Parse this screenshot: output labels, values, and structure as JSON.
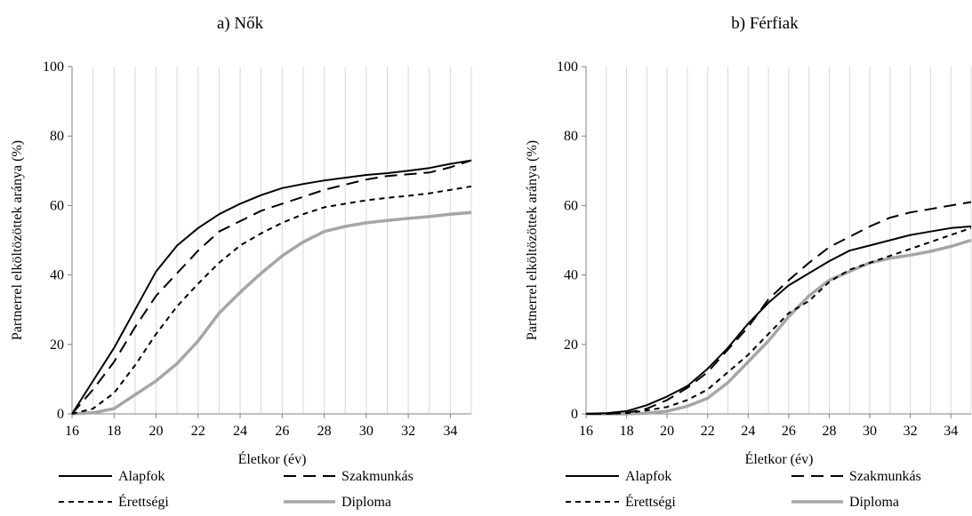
{
  "chart_data": [
    {
      "type": "line",
      "title": "a) Nők",
      "xlabel": "Életkor  (év)",
      "ylabel": "Partnerrel elköltözöttek aránya (%)",
      "xlim": [
        16,
        35
      ],
      "ylim": [
        0,
        100
      ],
      "xticks": [
        16,
        18,
        20,
        22,
        24,
        26,
        28,
        30,
        32,
        34
      ],
      "yticks": [
        0,
        20,
        40,
        60,
        80,
        100
      ],
      "grid": "vertical",
      "legend_position": "bottom",
      "x": [
        16,
        17,
        18,
        19,
        20,
        21,
        22,
        23,
        24,
        25,
        26,
        27,
        28,
        29,
        30,
        31,
        32,
        33,
        34,
        35
      ],
      "series": [
        {
          "name": "Alapfok",
          "style": "solid",
          "color": "#000000",
          "values": [
            0,
            9.5,
            19,
            30,
            41,
            48.5,
            53.5,
            57.5,
            60.5,
            63,
            65,
            66.2,
            67.2,
            68,
            68.8,
            69.3,
            70,
            70.8,
            72,
            73
          ]
        },
        {
          "name": "Szakmunkás",
          "style": "long-dash",
          "color": "#000000",
          "values": [
            0,
            7,
            15,
            25,
            34,
            40.5,
            47,
            52.5,
            55.5,
            58.5,
            60.5,
            62.5,
            64.5,
            66,
            67.5,
            68.5,
            69,
            69.5,
            71,
            73
          ]
        },
        {
          "name": "Érettségi",
          "style": "short-dash",
          "color": "#000000",
          "values": [
            0,
            1.5,
            6,
            14,
            23,
            31,
            37.5,
            43.5,
            48.5,
            52,
            55,
            57.5,
            59.5,
            60.5,
            61.5,
            62.2,
            62.8,
            63.5,
            64.5,
            65.5
          ]
        },
        {
          "name": "Diploma",
          "style": "solid-thick",
          "color": "#a6a6a6",
          "values": [
            0,
            0.3,
            1.5,
            5.5,
            9.5,
            14.5,
            21,
            29,
            35,
            40.5,
            45.5,
            49.5,
            52.5,
            54,
            55,
            55.7,
            56.3,
            56.8,
            57.5,
            58
          ]
        }
      ]
    },
    {
      "type": "line",
      "title": "b) Férfiak",
      "xlabel": "Életkor (év)",
      "ylabel": "Partnerrel elköltözöttek aránya (%)",
      "xlim": [
        16,
        35
      ],
      "ylim": [
        0,
        100
      ],
      "xticks": [
        16,
        18,
        20,
        22,
        24,
        26,
        28,
        30,
        32,
        34
      ],
      "yticks": [
        0,
        20,
        40,
        60,
        80,
        100
      ],
      "grid": "vertical",
      "legend_position": "bottom",
      "x": [
        16,
        17,
        18,
        19,
        20,
        21,
        22,
        23,
        24,
        25,
        26,
        27,
        28,
        29,
        30,
        31,
        32,
        33,
        34,
        35
      ],
      "series": [
        {
          "name": "Alapfok",
          "style": "solid",
          "color": "#000000",
          "values": [
            0,
            0.2,
            0.8,
            2.5,
            5,
            8,
            13,
            19,
            26,
            32,
            37,
            40.5,
            44,
            47,
            48.5,
            50,
            51.5,
            52.5,
            53.5,
            54
          ]
        },
        {
          "name": "Szakmunkás",
          "style": "long-dash",
          "color": "#000000",
          "values": [
            0,
            0,
            0.3,
            1.5,
            4,
            7.5,
            12,
            18.5,
            25,
            33,
            38.5,
            43.5,
            48,
            51,
            54,
            56.5,
            58,
            59,
            60,
            61
          ]
        },
        {
          "name": "Érettségi",
          "style": "short-dash",
          "color": "#000000",
          "values": [
            0,
            0,
            0.2,
            1,
            2,
            4,
            7,
            12,
            17,
            23,
            29,
            32.5,
            38,
            41.5,
            43.5,
            45.5,
            47.5,
            49.5,
            51.5,
            53.5
          ]
        },
        {
          "name": "Diploma",
          "style": "solid-thick",
          "color": "#a6a6a6",
          "values": [
            0,
            0,
            0,
            0.2,
            0.8,
            2.2,
            4.5,
            9,
            15,
            21,
            28,
            34,
            38.5,
            41,
            43.5,
            44.8,
            45.7,
            46.8,
            48.2,
            50
          ]
        }
      ]
    }
  ]
}
